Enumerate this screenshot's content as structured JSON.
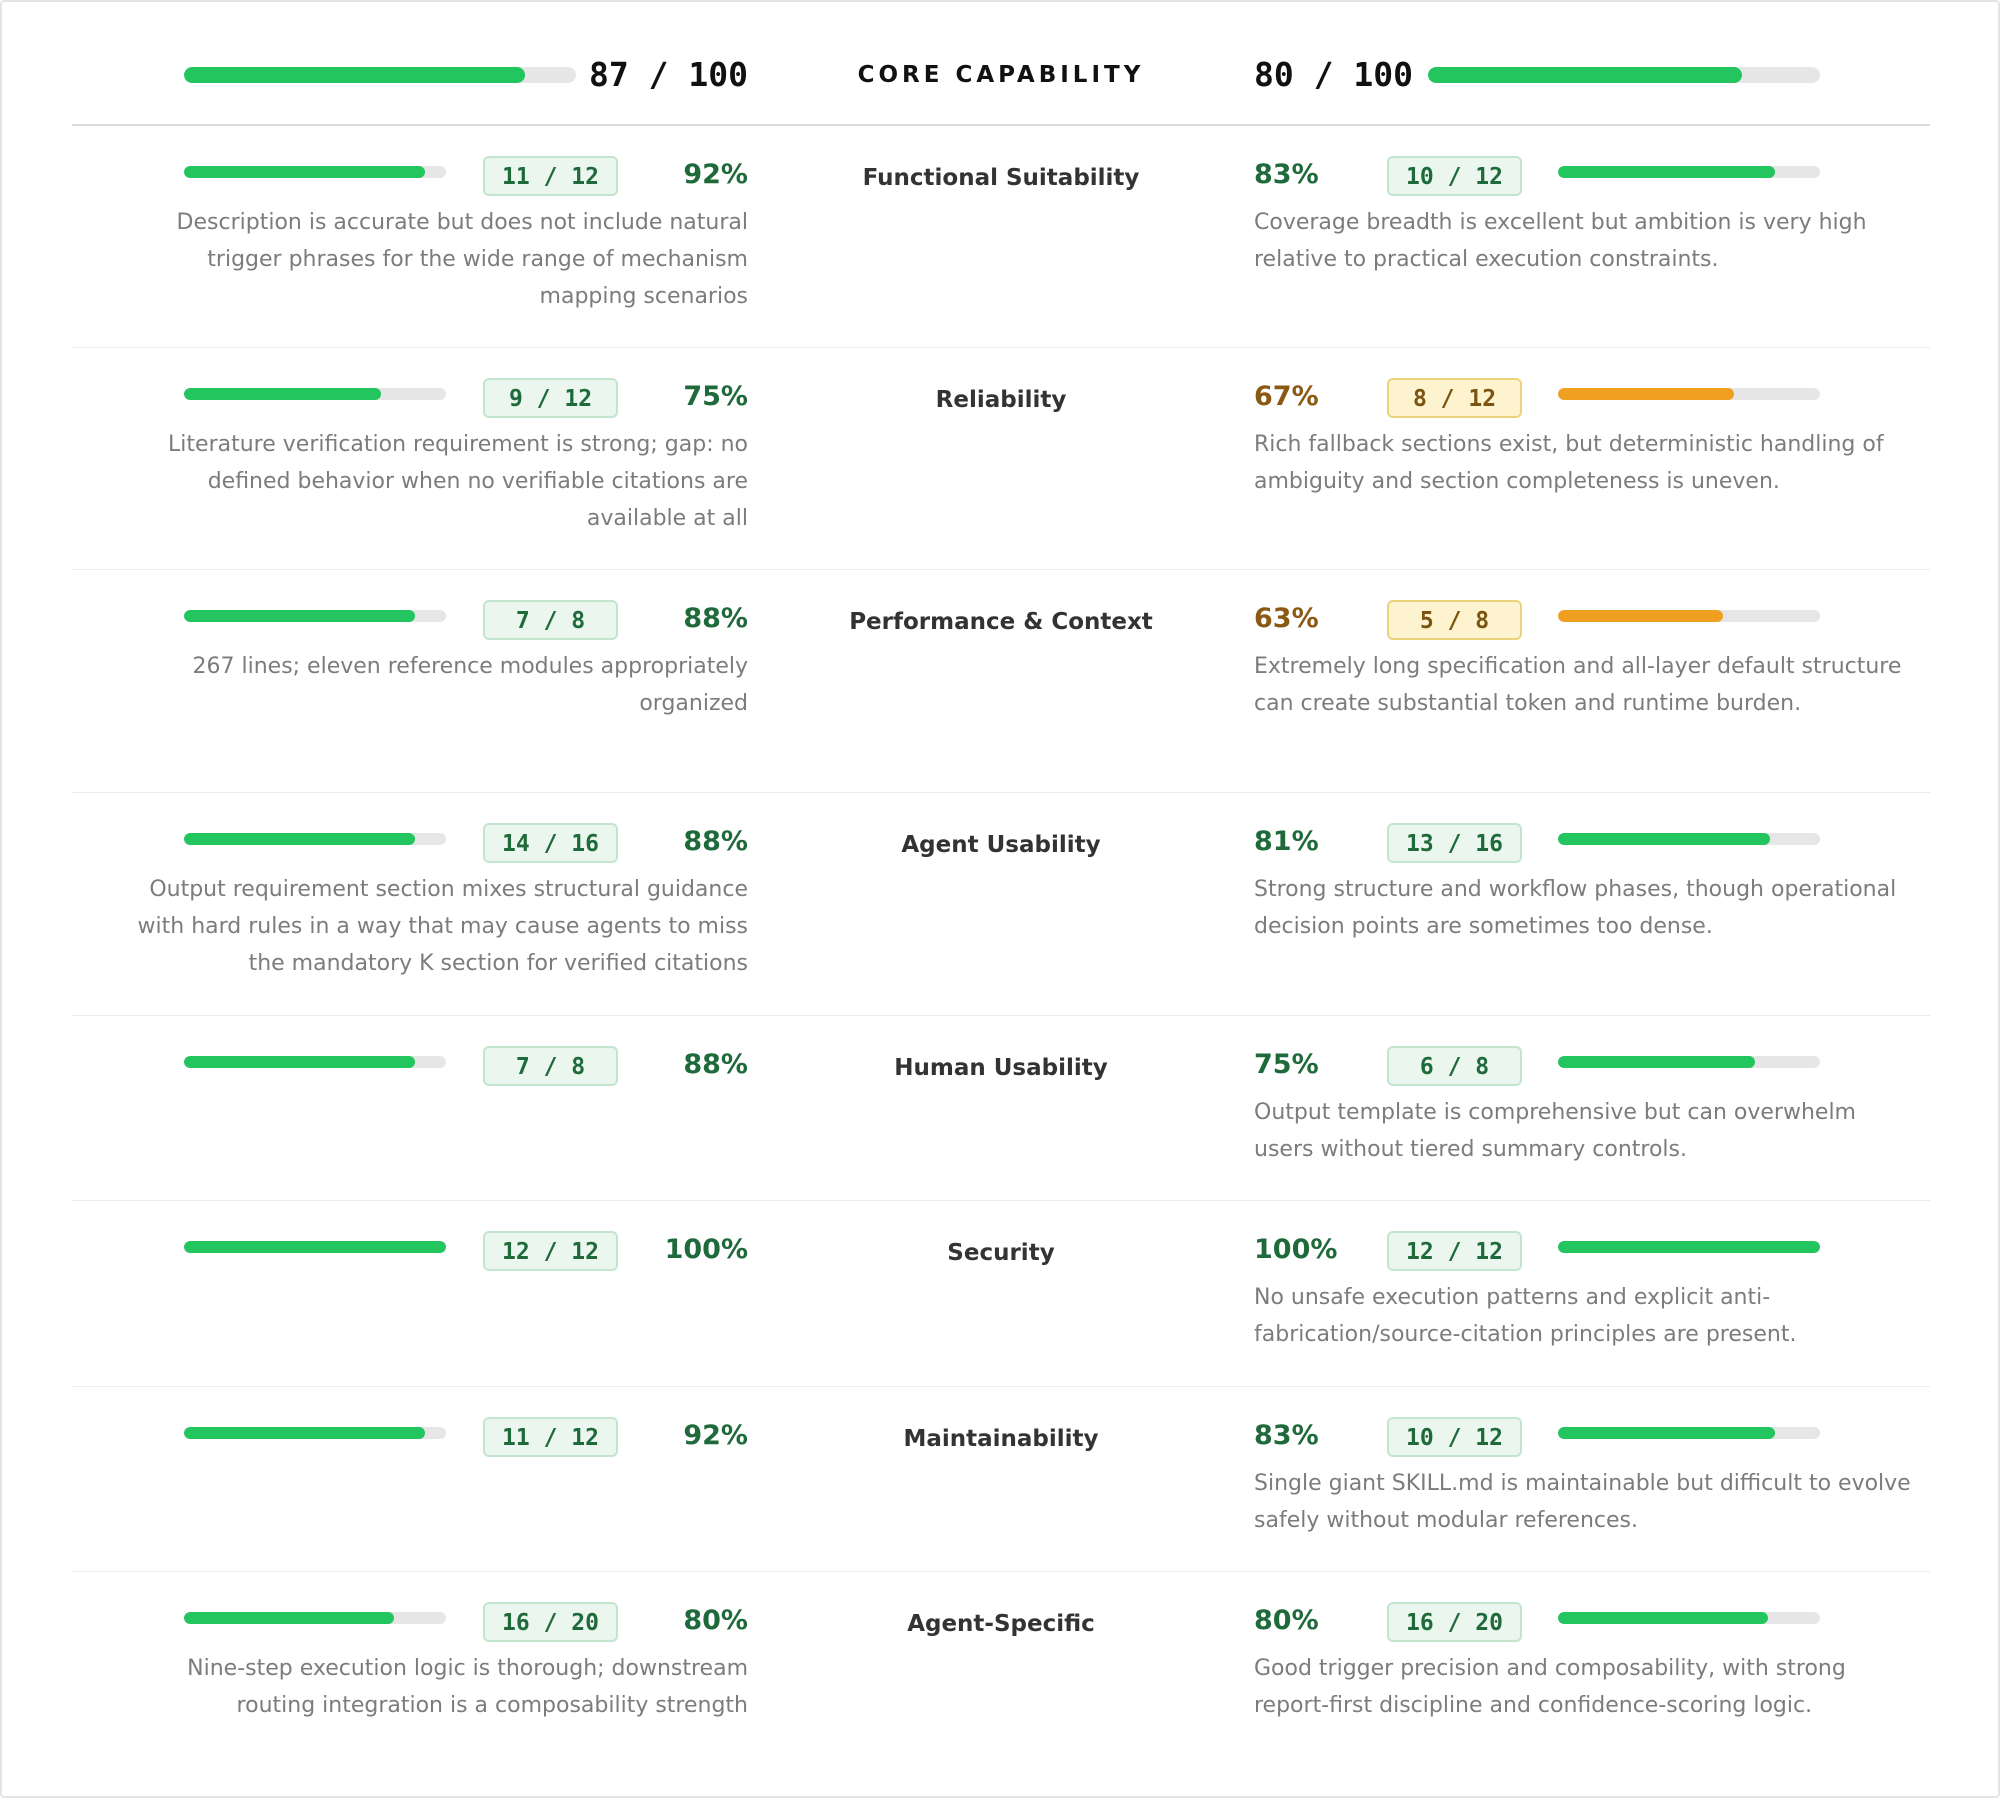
{
  "header": {
    "title": "CORE CAPABILITY",
    "left": {
      "score": "87 / 100",
      "fraction": 0.87
    },
    "right": {
      "score": "80 / 100",
      "fraction": 0.8
    }
  },
  "rows": [
    {
      "dimension": "Functional Suitability",
      "left": {
        "score": "11 / 12",
        "percent": "92%",
        "fraction": 0.92,
        "status": "green",
        "desc": "Description is accurate but does not include natural trigger phrases for the wide range of mechanism mapping scenarios"
      },
      "right": {
        "score": "10 / 12",
        "percent": "83%",
        "fraction": 0.83,
        "status": "green",
        "desc": "Coverage breadth is excellent but ambition is very high relative to practical execution constraints."
      }
    },
    {
      "dimension": "Reliability",
      "left": {
        "score": "9 / 12",
        "percent": "75%",
        "fraction": 0.75,
        "status": "green",
        "desc": "Literature verification requirement is strong; gap: no defined behavior when no verifiable citations are available at all"
      },
      "right": {
        "score": "8 / 12",
        "percent": "67%",
        "fraction": 0.67,
        "status": "amber",
        "desc": "Rich fallback sections exist, but deterministic handling of ambiguity and section completeness is uneven."
      }
    },
    {
      "dimension": "Performance & Context",
      "left": {
        "score": "7 / 8",
        "percent": "88%",
        "fraction": 0.88,
        "status": "green",
        "desc": "267 lines; eleven reference modules appropriately organized"
      },
      "right": {
        "score": "5 / 8",
        "percent": "63%",
        "fraction": 0.63,
        "status": "amber",
        "desc": "Extremely long specification and all-layer default structure can create substantial token and runtime burden."
      }
    },
    {
      "dimension": "Agent Usability",
      "left": {
        "score": "14 / 16",
        "percent": "88%",
        "fraction": 0.88,
        "status": "green",
        "desc": "Output requirement section mixes structural guidance with hard rules in a way that may cause agents to miss the mandatory K section for verified citations"
      },
      "right": {
        "score": "13 / 16",
        "percent": "81%",
        "fraction": 0.81,
        "status": "green",
        "desc": "Strong structure and workflow phases, though operational decision points are sometimes too dense."
      }
    },
    {
      "dimension": "Human Usability",
      "left": {
        "score": "7 / 8",
        "percent": "88%",
        "fraction": 0.88,
        "status": "green",
        "desc": ""
      },
      "right": {
        "score": "6 / 8",
        "percent": "75%",
        "fraction": 0.75,
        "status": "green",
        "desc": "Output template is comprehensive but can overwhelm users without tiered summary controls."
      }
    },
    {
      "dimension": "Security",
      "left": {
        "score": "12 / 12",
        "percent": "100%",
        "fraction": 1.0,
        "status": "green",
        "desc": ""
      },
      "right": {
        "score": "12 / 12",
        "percent": "100%",
        "fraction": 1.0,
        "status": "green",
        "desc": "No unsafe execution patterns and explicit anti-fabrication/source-citation principles are present."
      }
    },
    {
      "dimension": "Maintainability",
      "left": {
        "score": "11 / 12",
        "percent": "92%",
        "fraction": 0.92,
        "status": "green",
        "desc": ""
      },
      "right": {
        "score": "10 / 12",
        "percent": "83%",
        "fraction": 0.83,
        "status": "green",
        "desc": "Single giant SKILL.md is maintainable but difficult to evolve safely without modular references."
      }
    },
    {
      "dimension": "Agent-Specific",
      "left": {
        "score": "16 / 20",
        "percent": "80%",
        "fraction": 0.8,
        "status": "green",
        "desc": "Nine-step execution logic is thorough; downstream routing integration is a composability strength"
      },
      "right": {
        "score": "16 / 20",
        "percent": "80%",
        "fraction": 0.8,
        "status": "green",
        "desc": "Good trigger precision and composability, with strong report-first discipline and confidence-scoring logic."
      }
    }
  ]
}
